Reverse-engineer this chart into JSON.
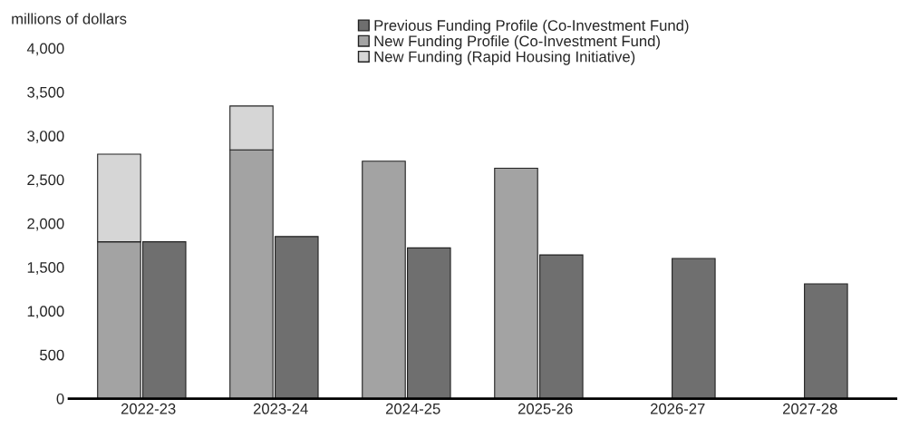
{
  "chart_data": {
    "type": "bar",
    "ylabel": "millions of dollars",
    "categories": [
      "2022-23",
      "2023-24",
      "2024-25",
      "2025-26",
      "2026-27",
      "2027-28"
    ],
    "series": [
      {
        "name": "New Funding Profile (Co-Investment Fund)",
        "color": "#a3a3a3",
        "values": [
          1790,
          2840,
          2710,
          2630,
          null,
          null
        ]
      },
      {
        "name": "New Funding (Rapid Housing Initiative)",
        "color": "#d6d6d6",
        "values": [
          1000,
          500,
          null,
          null,
          null,
          null
        ],
        "base": [
          1790,
          2840,
          null,
          null,
          null,
          null
        ]
      },
      {
        "name": "Previous Funding Profile (Co-Investment Fund)",
        "color": "#6f6f6f",
        "values": [
          1790,
          1850,
          1720,
          1640,
          1600,
          1310
        ]
      }
    ],
    "ylim": [
      0,
      4000
    ],
    "yticks": [
      0,
      {
        "value": 500,
        "label": "500"
      },
      {
        "value": 1000,
        "label": "1,000"
      },
      {
        "value": 1500,
        "label": "1,500"
      },
      {
        "value": 2000,
        "label": "2,000"
      },
      {
        "value": 2500,
        "label": "2,500"
      },
      {
        "value": 3000,
        "label": "3,000"
      },
      {
        "value": 3500,
        "label": "3,500"
      },
      {
        "value": 4000,
        "label": "4,000"
      }
    ],
    "grid": false,
    "legend": "top"
  }
}
